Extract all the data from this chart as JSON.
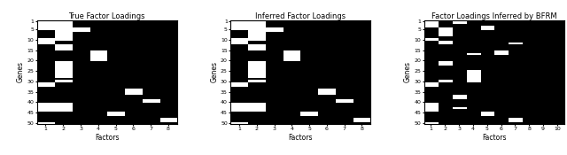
{
  "title1": "True Factor Loadings",
  "title2": "Inferred Factor Loadings",
  "title3": "Factor Loadings Inferred by BFRM",
  "xlabel": "Factors",
  "ylabel": "Genes",
  "n_genes": 50,
  "n_factors1": 8,
  "n_factors2": 8,
  "n_factors3": 10,
  "ytick_positions": [
    0,
    4,
    9,
    14,
    19,
    24,
    29,
    34,
    39,
    44,
    49
  ],
  "ytick_labels": [
    "1",
    "5",
    "10",
    "15",
    "20",
    "25",
    "30",
    "35",
    "40",
    "45",
    "50"
  ],
  "matrix1": [
    [
      1,
      1,
      0,
      0,
      0,
      0,
      0,
      0
    ],
    [
      1,
      1,
      0,
      0,
      0,
      0,
      0,
      0
    ],
    [
      1,
      1,
      0,
      0,
      0,
      0,
      0,
      0
    ],
    [
      1,
      1,
      0,
      0,
      0,
      0,
      0,
      0
    ],
    [
      1,
      1,
      1,
      0,
      0,
      0,
      0,
      0
    ],
    [
      0,
      1,
      1,
      0,
      0,
      0,
      0,
      0
    ],
    [
      0,
      1,
      0,
      0,
      0,
      0,
      0,
      0
    ],
    [
      0,
      1,
      0,
      0,
      0,
      0,
      0,
      0
    ],
    [
      0,
      1,
      0,
      0,
      0,
      0,
      0,
      0
    ],
    [
      1,
      1,
      0,
      0,
      0,
      0,
      0,
      0
    ],
    [
      1,
      0,
      0,
      0,
      0,
      0,
      0,
      0
    ],
    [
      1,
      0,
      0,
      0,
      0,
      0,
      0,
      0
    ],
    [
      0,
      1,
      0,
      0,
      0,
      0,
      0,
      0
    ],
    [
      0,
      1,
      0,
      0,
      0,
      0,
      0,
      0
    ],
    [
      0,
      1,
      0,
      0,
      0,
      0,
      0,
      0
    ],
    [
      0,
      0,
      0,
      1,
      0,
      0,
      0,
      0
    ],
    [
      0,
      0,
      0,
      1,
      0,
      0,
      0,
      0
    ],
    [
      0,
      0,
      0,
      1,
      0,
      0,
      0,
      0
    ],
    [
      0,
      0,
      0,
      1,
      0,
      0,
      0,
      0
    ],
    [
      0,
      0,
      0,
      1,
      0,
      0,
      0,
      0
    ],
    [
      0,
      1,
      0,
      0,
      0,
      0,
      0,
      0
    ],
    [
      0,
      1,
      0,
      0,
      0,
      0,
      0,
      0
    ],
    [
      0,
      1,
      0,
      0,
      0,
      0,
      0,
      0
    ],
    [
      0,
      1,
      0,
      0,
      0,
      0,
      0,
      0
    ],
    [
      0,
      1,
      0,
      0,
      0,
      0,
      0,
      0
    ],
    [
      0,
      1,
      0,
      0,
      0,
      0,
      0,
      0
    ],
    [
      0,
      1,
      0,
      0,
      0,
      0,
      0,
      0
    ],
    [
      0,
      1,
      0,
      0,
      0,
      0,
      0,
      0
    ],
    [
      0,
      0,
      0,
      0,
      0,
      0,
      0,
      0
    ],
    [
      0,
      1,
      0,
      0,
      0,
      0,
      0,
      0
    ],
    [
      1,
      0,
      0,
      0,
      0,
      0,
      0,
      0
    ],
    [
      1,
      0,
      0,
      0,
      0,
      0,
      0,
      0
    ],
    [
      0,
      0,
      0,
      0,
      0,
      0,
      0,
      0
    ],
    [
      0,
      0,
      0,
      0,
      0,
      1,
      0,
      0
    ],
    [
      0,
      0,
      0,
      0,
      0,
      1,
      0,
      0
    ],
    [
      0,
      0,
      0,
      0,
      0,
      1,
      0,
      0
    ],
    [
      0,
      0,
      0,
      0,
      0,
      0,
      0,
      0
    ],
    [
      0,
      0,
      0,
      0,
      0,
      0,
      0,
      0
    ],
    [
      0,
      0,
      0,
      0,
      0,
      0,
      1,
      0
    ],
    [
      0,
      0,
      0,
      0,
      0,
      0,
      1,
      0
    ],
    [
      1,
      1,
      0,
      0,
      0,
      0,
      0,
      0
    ],
    [
      1,
      1,
      0,
      0,
      0,
      0,
      0,
      0
    ],
    [
      1,
      1,
      0,
      0,
      0,
      0,
      0,
      0
    ],
    [
      1,
      1,
      0,
      0,
      0,
      0,
      0,
      0
    ],
    [
      0,
      0,
      0,
      0,
      1,
      0,
      0,
      0
    ],
    [
      0,
      0,
      0,
      0,
      1,
      0,
      0,
      0
    ],
    [
      0,
      0,
      0,
      0,
      0,
      0,
      0,
      0
    ],
    [
      0,
      0,
      0,
      0,
      0,
      0,
      0,
      1
    ],
    [
      0,
      0,
      0,
      0,
      0,
      0,
      0,
      1
    ],
    [
      1,
      0,
      0,
      0,
      0,
      0,
      0,
      0
    ]
  ],
  "matrix2": [
    [
      1,
      1,
      0,
      0,
      0,
      0,
      0,
      0
    ],
    [
      1,
      1,
      0,
      0,
      0,
      0,
      0,
      0
    ],
    [
      1,
      1,
      0,
      0,
      0,
      0,
      0,
      0
    ],
    [
      1,
      1,
      0,
      0,
      0,
      0,
      0,
      0
    ],
    [
      1,
      1,
      1,
      0,
      0,
      0,
      0,
      0
    ],
    [
      0,
      1,
      1,
      0,
      0,
      0,
      0,
      0
    ],
    [
      0,
      1,
      0,
      0,
      0,
      0,
      0,
      0
    ],
    [
      0,
      1,
      0,
      0,
      0,
      0,
      0,
      0
    ],
    [
      0,
      1,
      0,
      0,
      0,
      0,
      0,
      0
    ],
    [
      1,
      1,
      0,
      0,
      0,
      0,
      0,
      0
    ],
    [
      1,
      0,
      0,
      0,
      0,
      0,
      0,
      0
    ],
    [
      1,
      0,
      0,
      0,
      0,
      0,
      0,
      0
    ],
    [
      0,
      1,
      0,
      0,
      0,
      0,
      0,
      0
    ],
    [
      0,
      1,
      0,
      0,
      0,
      0,
      0,
      0
    ],
    [
      0,
      1,
      0,
      0,
      0,
      0,
      0,
      0
    ],
    [
      0,
      0,
      0,
      1,
      0,
      0,
      0,
      0
    ],
    [
      0,
      0,
      0,
      1,
      0,
      0,
      0,
      0
    ],
    [
      0,
      0,
      0,
      1,
      0,
      0,
      0,
      0
    ],
    [
      0,
      0,
      0,
      1,
      0,
      0,
      0,
      0
    ],
    [
      0,
      0,
      0,
      1,
      0,
      0,
      0,
      0
    ],
    [
      0,
      1,
      0,
      0,
      0,
      0,
      0,
      0
    ],
    [
      0,
      1,
      0,
      0,
      0,
      0,
      0,
      0
    ],
    [
      0,
      1,
      0,
      0,
      0,
      0,
      0,
      0
    ],
    [
      0,
      1,
      0,
      0,
      0,
      0,
      0,
      0
    ],
    [
      0,
      1,
      0,
      0,
      0,
      0,
      0,
      0
    ],
    [
      0,
      1,
      0,
      0,
      0,
      0,
      0,
      0
    ],
    [
      0,
      1,
      0,
      0,
      0,
      0,
      0,
      0
    ],
    [
      0,
      1,
      0,
      0,
      0,
      0,
      0,
      0
    ],
    [
      0,
      0,
      0,
      0,
      0,
      0,
      0,
      0
    ],
    [
      0,
      1,
      0,
      0,
      0,
      0,
      0,
      0
    ],
    [
      1,
      0,
      0,
      0,
      0,
      0,
      0,
      0
    ],
    [
      1,
      0,
      0,
      0,
      0,
      0,
      0,
      0
    ],
    [
      0,
      0,
      0,
      0,
      0,
      0,
      0,
      0
    ],
    [
      0,
      0,
      0,
      0,
      0,
      1,
      0,
      0
    ],
    [
      0,
      0,
      0,
      0,
      0,
      1,
      0,
      0
    ],
    [
      0,
      0,
      0,
      0,
      0,
      1,
      0,
      0
    ],
    [
      0,
      0,
      0,
      0,
      0,
      0,
      0,
      0
    ],
    [
      0,
      0,
      0,
      0,
      0,
      0,
      0,
      0
    ],
    [
      0,
      0,
      0,
      0,
      0,
      0,
      1,
      0
    ],
    [
      0,
      0,
      0,
      0,
      0,
      0,
      1,
      0
    ],
    [
      1,
      1,
      0,
      0,
      0,
      0,
      0,
      0
    ],
    [
      1,
      1,
      0,
      0,
      0,
      0,
      0,
      0
    ],
    [
      1,
      1,
      0,
      0,
      0,
      0,
      0,
      0
    ],
    [
      1,
      1,
      0,
      0,
      0,
      0,
      0,
      0
    ],
    [
      0,
      0,
      0,
      0,
      1,
      0,
      0,
      0
    ],
    [
      0,
      0,
      0,
      0,
      1,
      0,
      0,
      0
    ],
    [
      0,
      0,
      0,
      0,
      0,
      0,
      0,
      0
    ],
    [
      0,
      0,
      0,
      0,
      0,
      0,
      0,
      1
    ],
    [
      0,
      0,
      0,
      0,
      0,
      0,
      0,
      1
    ],
    [
      1,
      0,
      0,
      0,
      0,
      0,
      0,
      0
    ]
  ],
  "matrix3": [
    [
      1,
      0,
      0,
      0,
      0,
      0,
      0,
      0,
      0,
      0
    ],
    [
      1,
      0,
      1,
      0,
      0,
      0,
      0,
      0,
      0,
      0
    ],
    [
      1,
      0,
      0,
      0,
      0,
      0,
      0,
      0,
      0,
      0
    ],
    [
      1,
      0,
      0,
      0,
      1,
      0,
      0,
      0,
      0,
      0
    ],
    [
      0,
      1,
      0,
      0,
      1,
      0,
      0,
      0,
      0,
      0
    ],
    [
      0,
      1,
      0,
      0,
      0,
      0,
      0,
      0,
      0,
      0
    ],
    [
      0,
      1,
      0,
      0,
      0,
      0,
      0,
      0,
      0,
      0
    ],
    [
      0,
      1,
      0,
      0,
      0,
      0,
      0,
      0,
      0,
      0
    ],
    [
      0,
      0,
      0,
      0,
      0,
      0,
      0,
      0,
      0,
      0
    ],
    [
      1,
      0,
      0,
      0,
      0,
      0,
      0,
      0,
      0,
      0
    ],
    [
      0,
      1,
      0,
      0,
      0,
      0,
      0,
      0,
      0,
      0
    ],
    [
      0,
      1,
      0,
      0,
      0,
      0,
      1,
      0,
      0,
      0
    ],
    [
      0,
      0,
      0,
      0,
      0,
      0,
      0,
      0,
      0,
      0
    ],
    [
      0,
      0,
      0,
      0,
      0,
      0,
      0,
      0,
      0,
      0
    ],
    [
      0,
      0,
      0,
      0,
      0,
      0,
      0,
      0,
      0,
      0
    ],
    [
      0,
      0,
      0,
      0,
      0,
      1,
      0,
      0,
      0,
      0
    ],
    [
      0,
      0,
      0,
      1,
      0,
      1,
      0,
      0,
      0,
      0
    ],
    [
      0,
      0,
      0,
      0,
      0,
      0,
      0,
      0,
      0,
      0
    ],
    [
      0,
      0,
      0,
      0,
      0,
      0,
      0,
      0,
      0,
      0
    ],
    [
      0,
      0,
      0,
      0,
      0,
      0,
      0,
      0,
      0,
      0
    ],
    [
      0,
      1,
      0,
      0,
      0,
      0,
      0,
      0,
      0,
      0
    ],
    [
      0,
      1,
      0,
      0,
      0,
      0,
      0,
      0,
      0,
      0
    ],
    [
      0,
      0,
      0,
      0,
      0,
      0,
      0,
      0,
      0,
      0
    ],
    [
      0,
      0,
      0,
      0,
      0,
      0,
      0,
      0,
      0,
      0
    ],
    [
      0,
      0,
      0,
      1,
      0,
      0,
      0,
      0,
      0,
      0
    ],
    [
      0,
      0,
      0,
      1,
      0,
      0,
      0,
      0,
      0,
      0
    ],
    [
      0,
      0,
      0,
      1,
      0,
      0,
      0,
      0,
      0,
      0
    ],
    [
      0,
      0,
      0,
      1,
      0,
      0,
      0,
      0,
      0,
      0
    ],
    [
      0,
      0,
      0,
      1,
      0,
      0,
      0,
      0,
      0,
      0
    ],
    [
      0,
      1,
      0,
      1,
      0,
      0,
      0,
      0,
      0,
      0
    ],
    [
      1,
      0,
      0,
      0,
      0,
      0,
      0,
      0,
      0,
      0
    ],
    [
      1,
      0,
      0,
      0,
      0,
      0,
      0,
      0,
      0,
      0
    ],
    [
      0,
      0,
      0,
      0,
      0,
      0,
      0,
      0,
      0,
      0
    ],
    [
      0,
      0,
      0,
      0,
      0,
      0,
      0,
      0,
      0,
      0
    ],
    [
      0,
      0,
      0,
      0,
      0,
      0,
      0,
      0,
      0,
      0
    ],
    [
      0,
      0,
      0,
      0,
      0,
      0,
      0,
      0,
      0,
      0
    ],
    [
      0,
      0,
      1,
      0,
      0,
      0,
      0,
      0,
      0,
      0
    ],
    [
      0,
      0,
      1,
      0,
      0,
      0,
      0,
      0,
      0,
      0
    ],
    [
      0,
      0,
      0,
      0,
      0,
      0,
      0,
      0,
      0,
      0
    ],
    [
      0,
      0,
      0,
      0,
      0,
      0,
      0,
      0,
      0,
      0
    ],
    [
      1,
      0,
      0,
      0,
      0,
      0,
      0,
      0,
      0,
      0
    ],
    [
      1,
      0,
      0,
      0,
      0,
      0,
      0,
      0,
      0,
      0
    ],
    [
      1,
      0,
      1,
      0,
      0,
      0,
      0,
      0,
      0,
      0
    ],
    [
      1,
      0,
      0,
      0,
      0,
      0,
      0,
      0,
      0,
      0
    ],
    [
      0,
      0,
      0,
      0,
      1,
      0,
      0,
      0,
      0,
      0
    ],
    [
      0,
      0,
      0,
      0,
      1,
      0,
      0,
      0,
      0,
      0
    ],
    [
      0,
      0,
      0,
      0,
      0,
      0,
      0,
      0,
      0,
      0
    ],
    [
      0,
      0,
      0,
      0,
      0,
      0,
      1,
      0,
      0,
      0
    ],
    [
      0,
      0,
      0,
      0,
      0,
      0,
      1,
      0,
      0,
      0
    ],
    [
      1,
      0,
      0,
      0,
      0,
      0,
      0,
      0,
      0,
      0
    ]
  ],
  "title_fontsize": 6,
  "tick_fontsize": 4.5,
  "label_fontsize": 5.5
}
